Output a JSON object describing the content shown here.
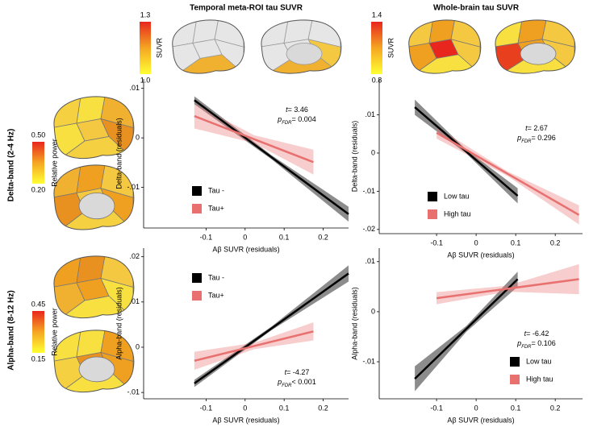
{
  "header": {
    "col_titles": [
      "Temporal meta-ROI tau SUVR",
      "Whole-brain tau SUVR"
    ],
    "row_titles": [
      "Delta-band (2-4 Hz)",
      "Alpha-band (8-12 Hz)"
    ]
  },
  "colorbars": [
    {
      "label": "SUVR",
      "max": "1.3",
      "min": "1.0"
    },
    {
      "label": "SUVR",
      "max": "1.4",
      "min": "0.8"
    },
    {
      "label": "Relative power",
      "max": "0.50",
      "min": "0.20"
    },
    {
      "label": "Relative power",
      "max": "0.45",
      "min": "0.15"
    }
  ],
  "chart_data": [
    {
      "type": "line",
      "x_label": "Aβ SUVR (residuals)",
      "y_label": "Delta-band (residuals)",
      "xlim": [
        -0.26,
        0.265
      ],
      "xticks": [
        -0.1,
        0,
        0.1,
        0.2
      ],
      "ylim": [
        -0.0182,
        0.0119
      ],
      "yticks": [
        {
          "value": 0.01,
          "label": ".01"
        },
        0,
        {
          "value": -0.01,
          "label": "-.01"
        }
      ],
      "legend": "lower left",
      "annotation": {
        "t_label": "t",
        "t_value": "= 3.46",
        "p_label": "p",
        "p_subscript": "FDR",
        "p_value": "= 0.004"
      },
      "series": [
        {
          "name": "Tau -",
          "color": "#000000",
          "x": [
            -0.13,
            0.0675,
            0.265
          ],
          "values": [
            0.0076,
            -0.0039,
            -0.0154
          ],
          "ci_upper": [
            0.0084,
            -0.0035,
            -0.0139
          ],
          "ci_lower": [
            0.0068,
            -0.0043,
            -0.0169
          ]
        },
        {
          "name": "Tau+",
          "color": "#e8706f",
          "x": [
            -0.13,
            0.0225,
            0.175
          ],
          "values": [
            0.0044,
            -0.00025,
            -0.0049
          ],
          "ci_upper": [
            0.0069,
            0.00055,
            -0.0024
          ],
          "ci_lower": [
            0.0019,
            -0.00105,
            -0.0074
          ]
        }
      ]
    },
    {
      "type": "line",
      "x_label": "Aβ SUVR (residuals)",
      "y_label": "Delta-band (residuals)",
      "xlim": [
        -0.245,
        0.269
      ],
      "xticks": [
        -0.1,
        0,
        0.1,
        0.2
      ],
      "ylim": [
        -0.0211,
        0.0194
      ],
      "yticks": [
        {
          "value": 0.01,
          "label": ".01"
        },
        0,
        {
          "value": -0.01,
          "label": "-.01"
        },
        {
          "value": -0.02,
          "label": "-.02"
        }
      ],
      "legend": "lower left",
      "annotation": {
        "t_label": "t",
        "t_value": "= 2.67",
        "p_label": "p",
        "p_subscript": "FDR",
        "p_value": "= 0.296"
      },
      "series": [
        {
          "name": "Low tau",
          "color": "#000000",
          "x": [
            -0.155,
            -0.025,
            0.105
          ],
          "values": [
            0.012,
            0.0004,
            -0.0112
          ],
          "ci_upper": [
            0.014,
            0.0009,
            -0.0092
          ],
          "ci_lower": [
            0.01,
            -0.0001,
            -0.0132
          ]
        },
        {
          "name": "High tau",
          "color": "#e8706f",
          "x": [
            -0.1,
            0.08,
            0.26
          ],
          "values": [
            0.0053,
            -0.00545,
            -0.0162
          ],
          "ci_upper": [
            0.0068,
            -0.00485,
            -0.0137
          ],
          "ci_lower": [
            0.0038,
            -0.00605,
            -0.0187
          ]
        }
      ]
    },
    {
      "type": "line",
      "x_label": "Aβ SUVR (residuals)",
      "y_label": "Alpha-band (residuals)",
      "xlim": [
        -0.26,
        0.265
      ],
      "xticks": [
        -0.1,
        0,
        0.1,
        0.2
      ],
      "ylim": [
        -0.0114,
        0.0219
      ],
      "yticks": [
        {
          "value": 0.02,
          "label": ".02"
        },
        {
          "value": 0.01,
          "label": ".01"
        },
        0,
        {
          "value": -0.01,
          "label": "-.01"
        }
      ],
      "legend": "upper left",
      "annotation": {
        "t_label": "t",
        "t_value": "= -4.27",
        "p_label": "p",
        "p_subscript": "FDR",
        "p_value": "< 0.001"
      },
      "series": [
        {
          "name": "Tau -",
          "color": "#000000",
          "x": [
            -0.13,
            0.0675,
            0.265
          ],
          "values": [
            -0.008,
            0.00415,
            0.0163
          ],
          "ci_upper": [
            -0.0072,
            0.00455,
            0.0181
          ],
          "ci_lower": [
            -0.0088,
            0.00375,
            0.0145
          ]
        },
        {
          "name": "Tau+",
          "color": "#e8706f",
          "x": [
            -0.13,
            0.0225,
            0.175
          ],
          "values": [
            -0.003,
            0.00025,
            0.0035
          ],
          "ci_upper": [
            -0.001,
            0.00095,
            0.0055
          ],
          "ci_lower": [
            -0.005,
            -0.00045,
            0.0015
          ]
        }
      ]
    },
    {
      "type": "line",
      "x_label": "Aβ SUVR (residuals)",
      "y_label": "Alpha-band (residuals)",
      "xlim": [
        -0.245,
        0.269
      ],
      "xticks": [
        -0.1,
        0,
        0.1,
        0.2
      ],
      "ylim": [
        -0.0174,
        0.0127
      ],
      "yticks": [
        {
          "value": 0.01,
          "label": ".01"
        },
        0,
        {
          "value": -0.01,
          "label": "-.01"
        }
      ],
      "legend": "lower right",
      "annotation": {
        "t_label": "t",
        "t_value": "= -6.42",
        "p_label": "p",
        "p_subscript": "FDR",
        "p_value": "= 0.106"
      },
      "series": [
        {
          "name": "Low tau",
          "color": "#000000",
          "x": [
            -0.155,
            -0.025,
            0.105
          ],
          "values": [
            -0.0134,
            -0.00345,
            0.0065
          ],
          "ci_upper": [
            -0.0109,
            -0.00285,
            0.008
          ],
          "ci_lower": [
            -0.0159,
            -0.00405,
            0.005
          ]
        },
        {
          "name": "High tau",
          "color": "#e8706f",
          "x": [
            -0.1,
            0.08,
            0.26
          ],
          "values": [
            0.0027,
            0.0046,
            0.0065
          ],
          "ci_upper": [
            0.0039,
            0.0052,
            0.0095
          ],
          "ci_lower": [
            0.0015,
            0.004,
            0.0035
          ]
        }
      ]
    }
  ]
}
